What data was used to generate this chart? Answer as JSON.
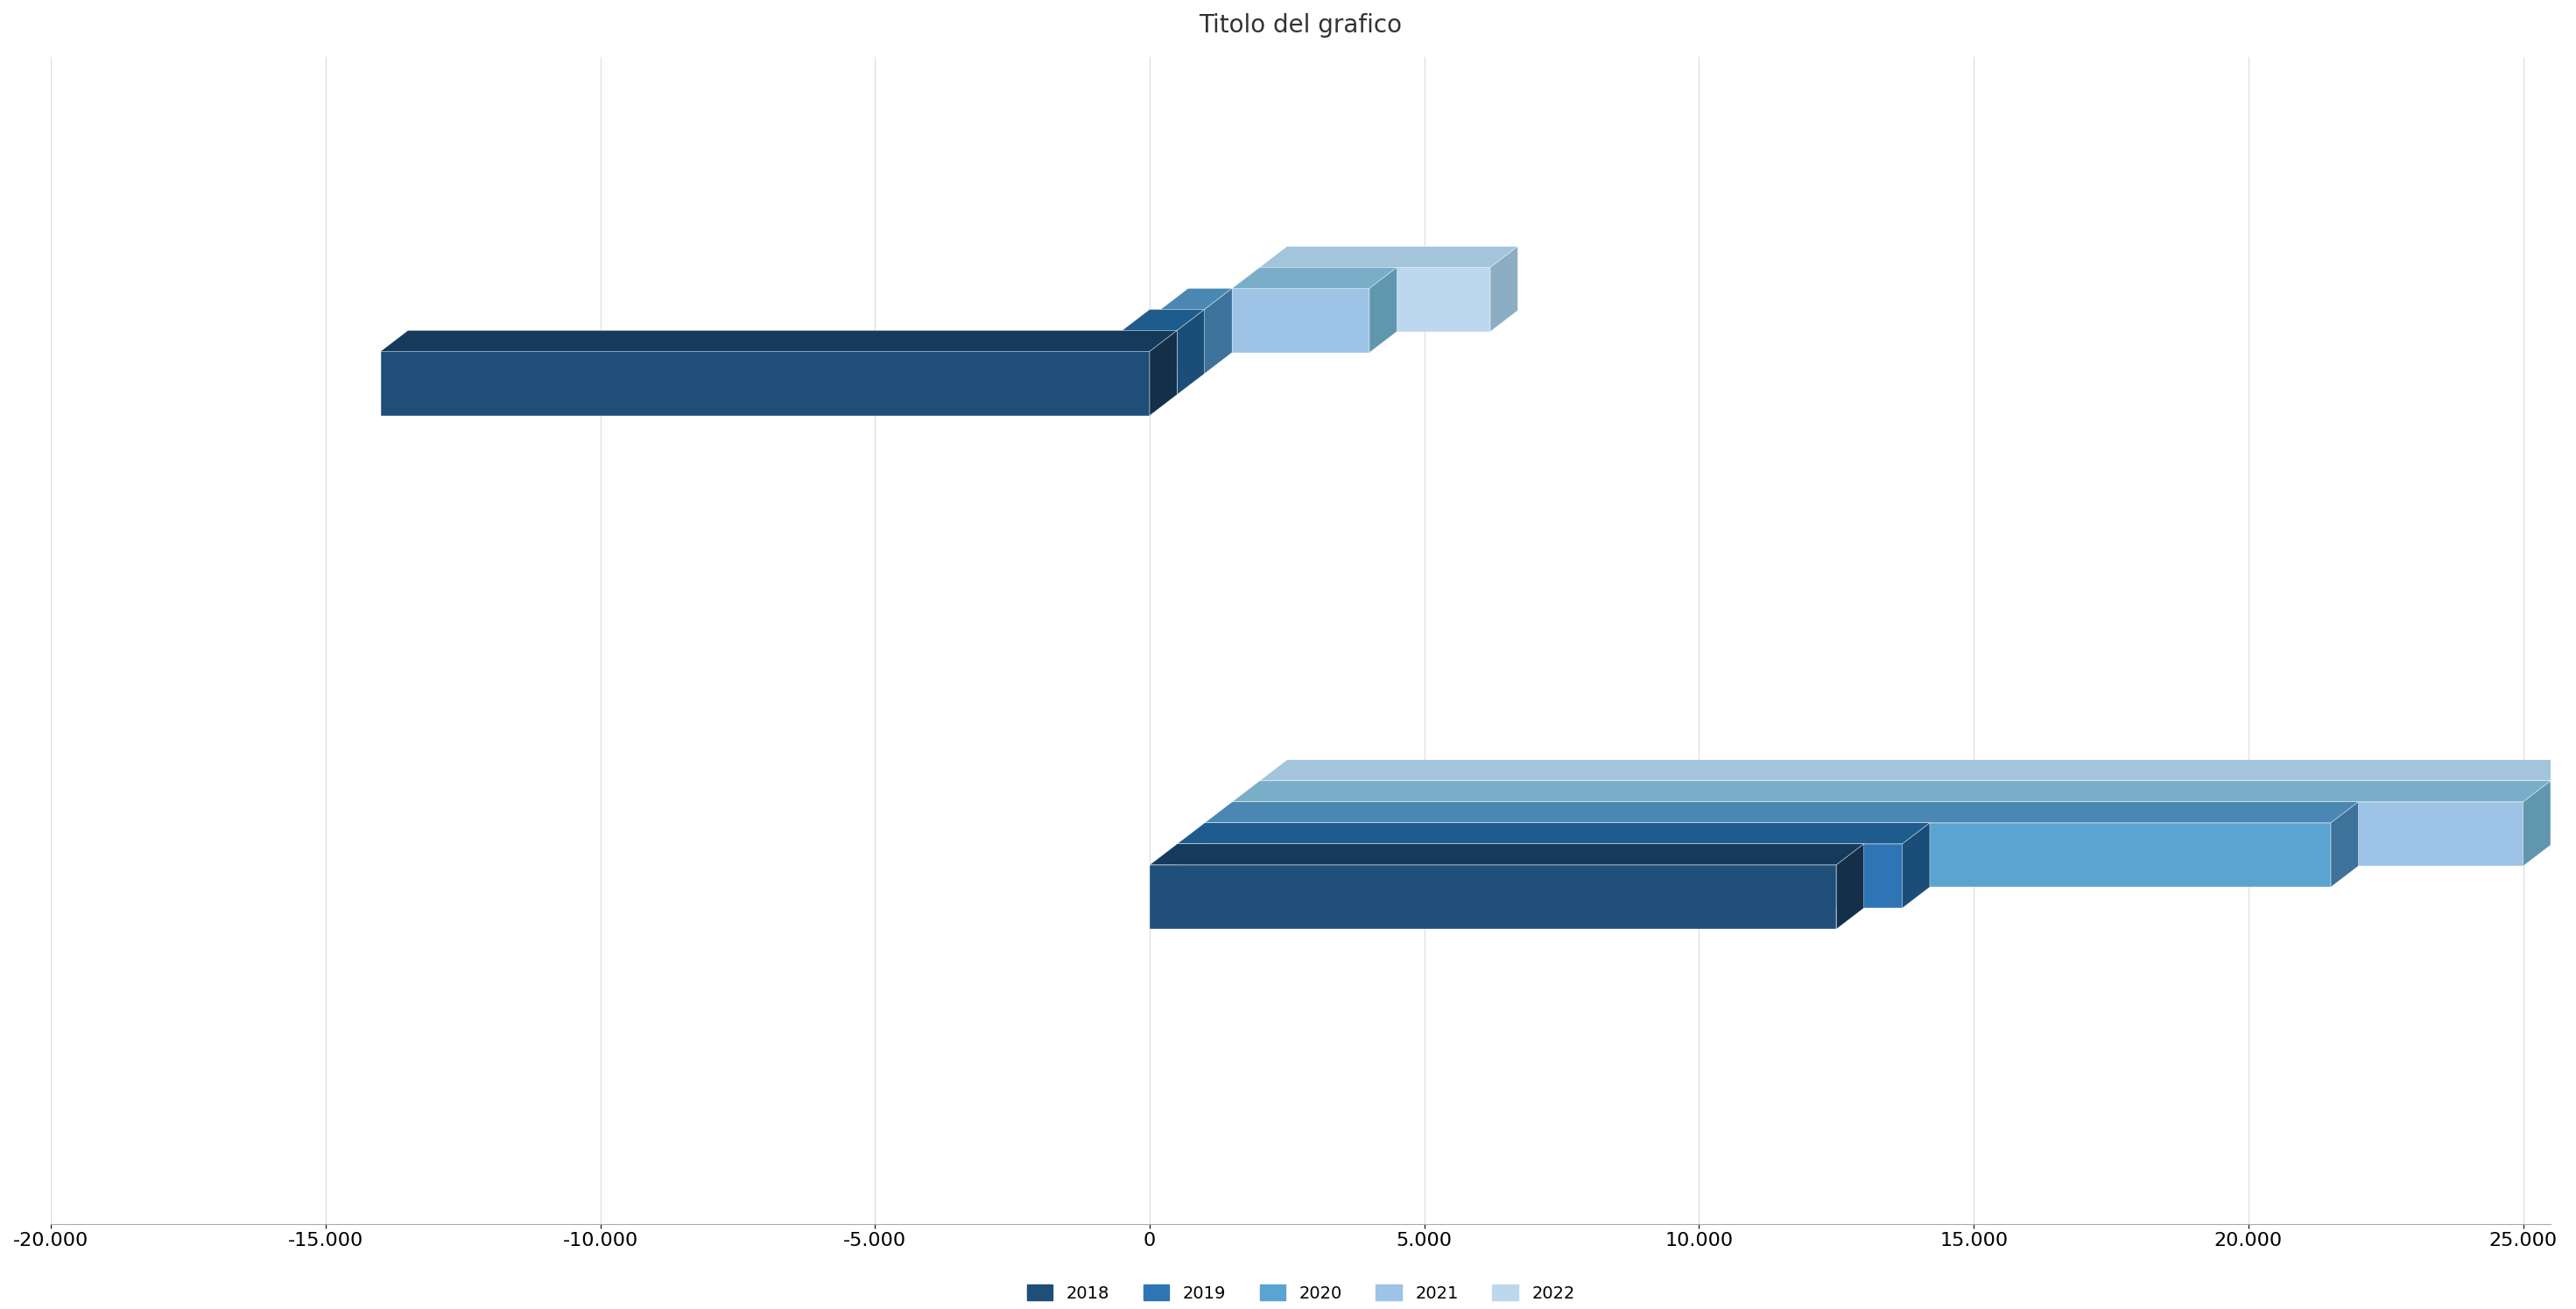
{
  "title": "Titolo del grafico",
  "series_labels": [
    "2018",
    "2019",
    "2020",
    "2021",
    "2022"
  ],
  "series_colors": [
    "#1F4E79",
    "#2E75B6",
    "#5BA3D0",
    "#9DC3E6",
    "#BDD7EE"
  ],
  "series_top_colors": [
    "#163A5C",
    "#1E5C8E",
    "#4A88B3",
    "#7AAEC8",
    "#A2C5DC"
  ],
  "series_side_colors": [
    "#142F4A",
    "#1A4E78",
    "#3D729A",
    "#6097AF",
    "#8BAEC4"
  ],
  "group1_values": [
    -14000,
    -1000,
    -800,
    2500,
    4200
  ],
  "group2_values": [
    12500,
    13200,
    20500,
    23500,
    25000
  ],
  "xlim": [
    -20000,
    25000
  ],
  "xticks": [
    -20000,
    -15000,
    -10000,
    -5000,
    0,
    5000,
    10000,
    15000,
    20000,
    25000
  ],
  "xtick_labels": [
    "-20.000",
    "-15.000",
    "-10.000",
    "-5.000",
    "0",
    "5.000",
    "10.000",
    "15.000",
    "20.000",
    "25.000"
  ],
  "background_color": "#FFFFFF",
  "grid_color": "#DCDCDC"
}
